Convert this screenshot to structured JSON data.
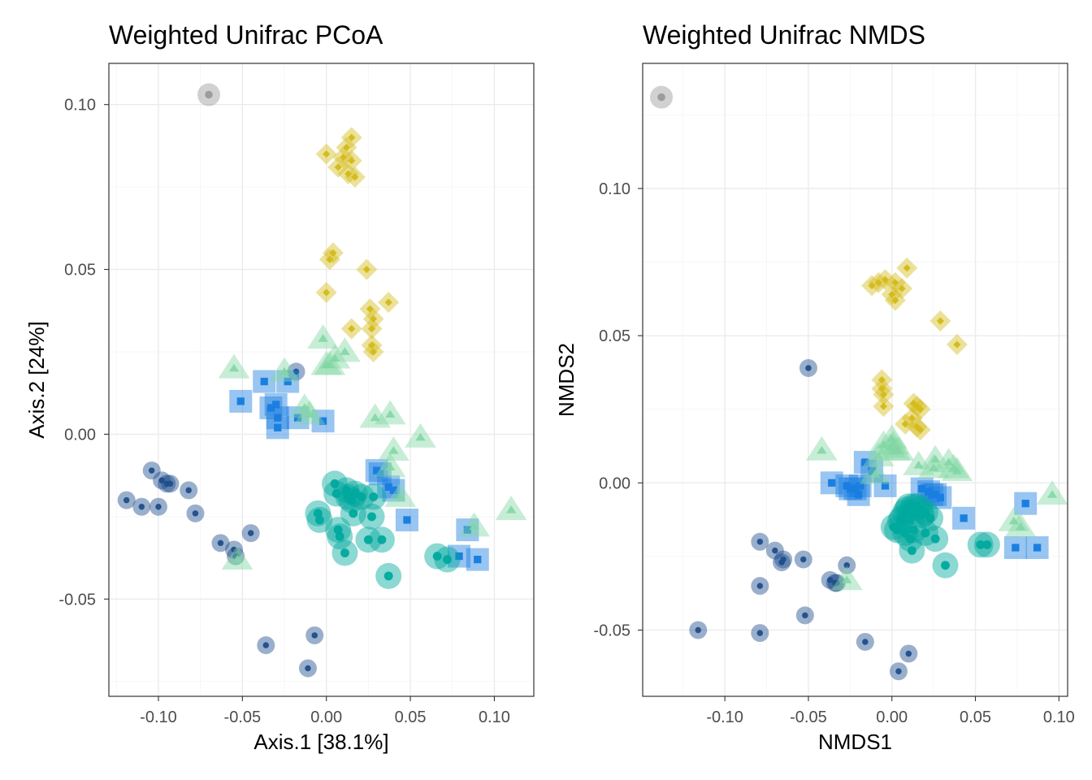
{
  "colors": {
    "A": "#1f4e8c",
    "B": "#1a7fe0",
    "C": "#00a99d",
    "D": "#82d6a5",
    "E": "#d4bc1c",
    "F": "#999999"
  },
  "chart_data": [
    {
      "type": "scatter",
      "title": "Weighted Unifrac PCoA",
      "xlabel": "Axis.1   [38.1%]",
      "ylabel": "Axis.2   [24%]",
      "xlim": [
        -0.1295,
        0.1235
      ],
      "ylim": [
        -0.0795,
        0.1125
      ],
      "xticks": [
        -0.1,
        -0.05,
        0.0,
        0.05,
        0.1
      ],
      "xtick_labels": [
        "-0.10",
        "-0.05",
        "0.00",
        "0.05",
        "0.10"
      ],
      "yticks": [
        -0.05,
        0.0,
        0.05,
        0.1
      ],
      "ytick_labels": [
        "-0.05",
        "0.00",
        "0.05",
        "0.10"
      ],
      "grid": true,
      "series": [
        {
          "group": "A",
          "shape": "circle",
          "points": [
            [
              -0.119,
              -0.02
            ],
            [
              -0.11,
              -0.022
            ],
            [
              -0.104,
              -0.011
            ],
            [
              -0.1,
              -0.022
            ],
            [
              -0.098,
              -0.014
            ],
            [
              -0.095,
              -0.015
            ],
            [
              -0.093,
              -0.015
            ],
            [
              -0.082,
              -0.017
            ],
            [
              -0.078,
              -0.024
            ],
            [
              -0.063,
              -0.033
            ],
            [
              -0.055,
              -0.035
            ],
            [
              -0.054,
              -0.037
            ],
            [
              -0.045,
              -0.03
            ],
            [
              -0.036,
              -0.064
            ],
            [
              -0.018,
              0.019
            ],
            [
              -0.011,
              -0.071
            ],
            [
              -0.007,
              -0.061
            ]
          ]
        },
        {
          "group": "B",
          "shape": "square",
          "points": [
            [
              -0.051,
              0.01
            ],
            [
              -0.037,
              0.016
            ],
            [
              -0.033,
              0.008
            ],
            [
              -0.03,
              0.009
            ],
            [
              -0.029,
              0.005
            ],
            [
              -0.029,
              0.002
            ],
            [
              -0.023,
              0.016
            ],
            [
              -0.017,
              0.005
            ],
            [
              -0.002,
              0.004
            ],
            [
              0.03,
              -0.011
            ],
            [
              0.032,
              -0.012
            ],
            [
              0.037,
              -0.016
            ],
            [
              0.04,
              -0.017
            ],
            [
              0.048,
              -0.026
            ],
            [
              0.084,
              -0.029
            ],
            [
              0.079,
              -0.037
            ],
            [
              0.09,
              -0.038
            ]
          ]
        },
        {
          "group": "C",
          "shape": "circle",
          "points": [
            [
              0.005,
              -0.015
            ],
            [
              0.006,
              -0.018
            ],
            [
              0.012,
              -0.017
            ],
            [
              0.013,
              -0.019
            ],
            [
              0.015,
              -0.02
            ],
            [
              0.017,
              -0.018
            ],
            [
              0.021,
              -0.019
            ],
            [
              0.016,
              -0.024
            ],
            [
              0.028,
              -0.019
            ],
            [
              0.027,
              -0.025
            ],
            [
              -0.005,
              -0.024
            ],
            [
              -0.004,
              -0.026
            ],
            [
              0.007,
              -0.029
            ],
            [
              0.008,
              -0.031
            ],
            [
              0.025,
              -0.032
            ],
            [
              0.033,
              -0.032
            ],
            [
              0.011,
              -0.036
            ],
            [
              0.037,
              -0.043
            ],
            [
              0.066,
              -0.037
            ],
            [
              0.072,
              -0.038
            ]
          ]
        },
        {
          "group": "D",
          "shape": "triangle",
          "points": [
            [
              -0.055,
              0.02
            ],
            [
              -0.025,
              0.019
            ],
            [
              -0.013,
              0.008
            ],
            [
              -0.01,
              0.006
            ],
            [
              -0.002,
              0.029
            ],
            [
              0.0,
              0.021
            ],
            [
              0.002,
              0.021
            ],
            [
              0.005,
              0.023
            ],
            [
              0.011,
              0.025
            ],
            [
              0.029,
              0.005
            ],
            [
              0.038,
              0.006
            ],
            [
              0.04,
              -0.005
            ],
            [
              0.056,
              -0.001
            ],
            [
              0.038,
              -0.01
            ],
            [
              0.044,
              -0.019
            ],
            [
              0.088,
              -0.028
            ],
            [
              0.11,
              -0.023
            ],
            [
              -0.053,
              -0.038
            ]
          ]
        },
        {
          "group": "E",
          "shape": "diamond",
          "points": [
            [
              0.0,
              0.085
            ],
            [
              0.007,
              0.081
            ],
            [
              0.01,
              0.084
            ],
            [
              0.012,
              0.087
            ],
            [
              0.015,
              0.09
            ],
            [
              0.015,
              0.083
            ],
            [
              0.013,
              0.079
            ],
            [
              0.017,
              0.078
            ],
            [
              0.004,
              0.055
            ],
            [
              0.002,
              0.053
            ],
            [
              0.024,
              0.05
            ],
            [
              0.0,
              0.043
            ],
            [
              0.026,
              0.038
            ],
            [
              0.037,
              0.04
            ],
            [
              0.028,
              0.035
            ],
            [
              0.027,
              0.032
            ],
            [
              0.015,
              0.032
            ],
            [
              0.027,
              0.027
            ],
            [
              0.028,
              0.025
            ]
          ]
        },
        {
          "group": "F",
          "shape": "circle",
          "points": [
            [
              -0.07,
              0.103
            ]
          ]
        }
      ]
    },
    {
      "type": "scatter",
      "title": "Weighted Unifrac NMDS",
      "xlabel": "NMDS1",
      "ylabel": "NMDS2",
      "xlim": [
        -0.1492,
        0.1052
      ],
      "ylim": [
        -0.0725,
        0.1425
      ],
      "xticks": [
        -0.1,
        -0.05,
        0.0,
        0.05,
        0.1
      ],
      "xtick_labels": [
        "-0.10",
        "-0.05",
        "0.00",
        "0.05",
        "0.10"
      ],
      "yticks": [
        -0.05,
        0.0,
        0.05,
        0.1
      ],
      "ytick_labels": [
        "-0.05",
        "0.00",
        "0.05",
        "0.10"
      ],
      "grid": true,
      "series": [
        {
          "group": "A",
          "shape": "circle",
          "points": [
            [
              -0.116,
              -0.05
            ],
            [
              -0.079,
              -0.02
            ],
            [
              -0.079,
              -0.035
            ],
            [
              -0.079,
              -0.051
            ],
            [
              -0.07,
              -0.023
            ],
            [
              -0.066,
              -0.027
            ],
            [
              -0.065,
              -0.026
            ],
            [
              -0.053,
              -0.026
            ],
            [
              -0.052,
              -0.045
            ],
            [
              -0.05,
              0.039
            ],
            [
              -0.037,
              -0.033
            ],
            [
              -0.034,
              -0.034
            ],
            [
              -0.033,
              -0.034
            ],
            [
              -0.027,
              -0.028
            ],
            [
              -0.016,
              -0.054
            ],
            [
              0.01,
              -0.058
            ],
            [
              0.004,
              -0.064
            ]
          ]
        },
        {
          "group": "B",
          "shape": "square",
          "points": [
            [
              -0.036,
              0.0
            ],
            [
              -0.027,
              -0.001
            ],
            [
              -0.025,
              -0.002
            ],
            [
              -0.022,
              -0.002
            ],
            [
              -0.02,
              -0.004
            ],
            [
              -0.019,
              -0.001
            ],
            [
              -0.016,
              0.007
            ],
            [
              -0.012,
              0.004
            ],
            [
              -0.004,
              -0.001
            ],
            [
              0.018,
              -0.002
            ],
            [
              0.022,
              -0.003
            ],
            [
              0.024,
              -0.004
            ],
            [
              0.026,
              -0.004
            ],
            [
              0.029,
              -0.005
            ],
            [
              0.043,
              -0.012
            ],
            [
              0.074,
              -0.022
            ],
            [
              0.08,
              -0.007
            ],
            [
              0.087,
              -0.022
            ]
          ]
        },
        {
          "group": "C",
          "shape": "circle",
          "points": [
            [
              0.001,
              -0.015
            ],
            [
              0.003,
              -0.016
            ],
            [
              0.005,
              -0.013
            ],
            [
              0.006,
              -0.012
            ],
            [
              0.008,
              -0.01
            ],
            [
              0.009,
              -0.009
            ],
            [
              0.01,
              -0.008
            ],
            [
              0.011,
              -0.01
            ],
            [
              0.013,
              -0.008
            ],
            [
              0.015,
              -0.008
            ],
            [
              0.017,
              -0.009
            ],
            [
              0.018,
              -0.011
            ],
            [
              0.02,
              -0.01
            ],
            [
              0.023,
              -0.012
            ],
            [
              0.008,
              -0.017
            ],
            [
              0.011,
              -0.019
            ],
            [
              0.013,
              -0.016
            ],
            [
              0.02,
              -0.017
            ],
            [
              0.026,
              -0.019
            ],
            [
              0.012,
              -0.023
            ],
            [
              0.032,
              -0.028
            ],
            [
              0.053,
              -0.021
            ],
            [
              0.057,
              -0.021
            ]
          ]
        },
        {
          "group": "D",
          "shape": "triangle",
          "points": [
            [
              -0.042,
              0.011
            ],
            [
              -0.027,
              -0.033
            ],
            [
              -0.01,
              0.003
            ],
            [
              -0.008,
              0.009
            ],
            [
              -0.005,
              0.013
            ],
            [
              -0.001,
              0.012
            ],
            [
              0.0,
              0.015
            ],
            [
              0.001,
              0.013
            ],
            [
              0.002,
              0.011
            ],
            [
              0.004,
              0.011
            ],
            [
              0.016,
              0.006
            ],
            [
              0.025,
              0.005
            ],
            [
              0.026,
              0.008
            ],
            [
              0.034,
              0.007
            ],
            [
              0.037,
              0.005
            ],
            [
              0.039,
              0.004
            ],
            [
              0.073,
              -0.013
            ],
            [
              0.077,
              -0.015
            ],
            [
              0.096,
              -0.004
            ]
          ]
        },
        {
          "group": "E",
          "shape": "diamond",
          "points": [
            [
              -0.012,
              0.067
            ],
            [
              -0.008,
              0.068
            ],
            [
              -0.004,
              0.069
            ],
            [
              0.002,
              0.068
            ],
            [
              0.009,
              0.073
            ],
            [
              0.0,
              0.064
            ],
            [
              0.002,
              0.062
            ],
            [
              0.006,
              0.066
            ],
            [
              0.029,
              0.055
            ],
            [
              0.039,
              0.047
            ],
            [
              -0.006,
              0.035
            ],
            [
              -0.006,
              0.032
            ],
            [
              -0.005,
              0.03
            ],
            [
              -0.005,
              0.026
            ],
            [
              0.013,
              0.027
            ],
            [
              0.015,
              0.026
            ],
            [
              0.017,
              0.025
            ],
            [
              0.008,
              0.02
            ],
            [
              0.012,
              0.022
            ],
            [
              0.015,
              0.019
            ],
            [
              0.017,
              0.018
            ]
          ]
        },
        {
          "group": "F",
          "shape": "circle",
          "points": [
            [
              -0.138,
              0.131
            ]
          ]
        }
      ]
    }
  ]
}
